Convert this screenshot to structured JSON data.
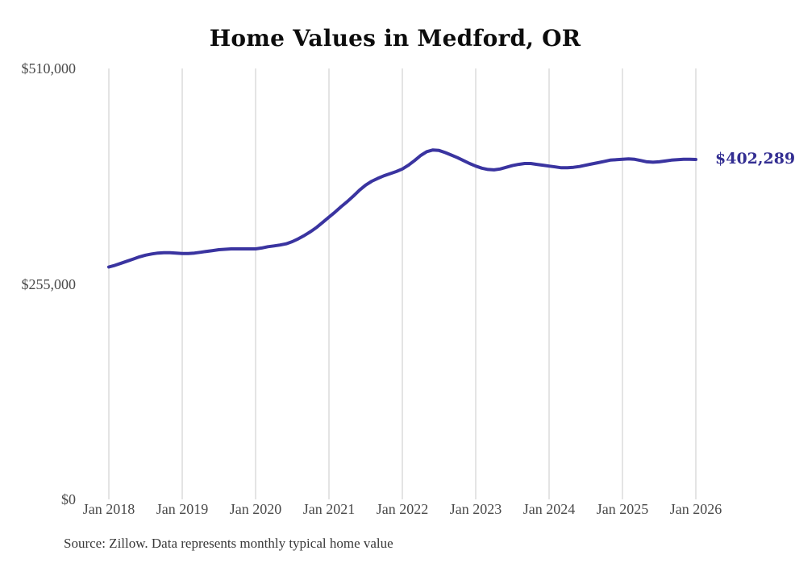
{
  "chart_data": {
    "type": "line",
    "title": "Home Values in Medford, OR",
    "end_label": "$402,289",
    "latest_value": 402289,
    "frequency": "monthly",
    "x_start": "Jan 2018",
    "x_end": "Jan 2026",
    "x_ticks": [
      "Jan 2018",
      "Jan 2019",
      "Jan 2020",
      "Jan 2021",
      "Jan 2022",
      "Jan 2023",
      "Jan 2024",
      "Jan 2025",
      "Jan 2026"
    ],
    "y_ticks": [
      {
        "label": "$510,000",
        "value": 510000
      },
      {
        "label": "$255,000",
        "value": 255000
      },
      {
        "label": "$0",
        "value": 0
      }
    ],
    "ylim": [
      0,
      510000
    ],
    "grid": "vertical-only",
    "legend": "none",
    "line_color": "#3a34a0",
    "end_label_color": "#332e92",
    "gridline_color": "#c9c9c9",
    "series": [
      {
        "name": "Typical home value",
        "values": [
          275000,
          277000,
          279500,
          282000,
          284500,
          287000,
          289000,
          290500,
          291500,
          292000,
          292000,
          291500,
          291000,
          291000,
          291500,
          292500,
          293500,
          294500,
          295500,
          296000,
          296500,
          296500,
          296500,
          296500,
          296500,
          297500,
          299000,
          300000,
          301000,
          302500,
          305000,
          308500,
          312500,
          317000,
          322000,
          328000,
          334000,
          340000,
          346500,
          352500,
          359000,
          366000,
          372000,
          376500,
          380000,
          383000,
          385500,
          388000,
          391000,
          395500,
          401000,
          407000,
          411500,
          413500,
          413000,
          410500,
          407500,
          404500,
          401000,
          397500,
          394500,
          392000,
          390500,
          390000,
          391000,
          393000,
          395000,
          396500,
          397500,
          397500,
          396500,
          395500,
          394500,
          393500,
          392500,
          392500,
          393000,
          394000,
          395500,
          397000,
          398500,
          400000,
          401500,
          402000,
          402500,
          403000,
          402500,
          401000,
          399500,
          399000,
          399500,
          400500,
          401500,
          402000,
          402500,
          402500,
          402289
        ]
      }
    ]
  },
  "source_note": "Source: Zillow. Data represents monthly typical home value"
}
